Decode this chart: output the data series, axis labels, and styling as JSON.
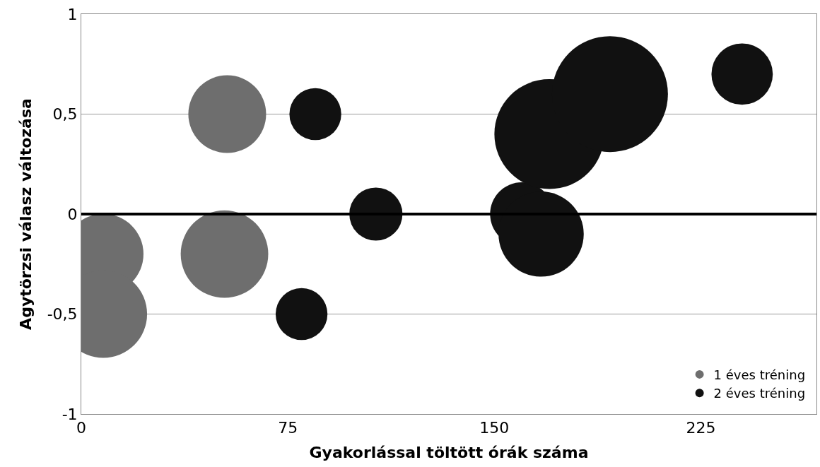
{
  "chart_data": {
    "type": "bubble",
    "xlabel": "Gyakorlással töltött órák száma",
    "ylabel": "Agytörzsi válasz változása",
    "xlim": [
      0,
      267
    ],
    "xticks": [
      0,
      75,
      150,
      225
    ],
    "ylim": [
      -1,
      1
    ],
    "yticks": [
      {
        "value": -1,
        "label": "-1"
      },
      {
        "value": -0.5,
        "label": "-0,5"
      },
      {
        "value": 0,
        "label": "0"
      },
      {
        "value": 0.5,
        "label": "0,5"
      },
      {
        "value": 1,
        "label": "1"
      }
    ],
    "grid": "y",
    "legend": "bottom right",
    "ref_lines": [
      {
        "axis": "y",
        "value": 0,
        "color": "#000000"
      }
    ],
    "series": [
      {
        "name": "1 éves tréning",
        "color": "#6e6e6e",
        "x": [
          8,
          8,
          53,
          52
        ],
        "values": [
          -0.2,
          -0.5,
          0.5,
          -0.2
        ],
        "sizes": [
          0.48,
          0.57,
          0.45,
          0.57
        ]
      },
      {
        "name": "2 éves tréning",
        "color": "#111111",
        "x": [
          85,
          80,
          107,
          160,
          167,
          170,
          192,
          240
        ],
        "values": [
          0.5,
          -0.5,
          0,
          0,
          -0.1,
          0.4,
          0.6,
          0.7
        ],
        "sizes": [
          0.2,
          0.2,
          0.21,
          0.3,
          0.54,
          0.9,
          1,
          0.28
        ]
      }
    ]
  }
}
